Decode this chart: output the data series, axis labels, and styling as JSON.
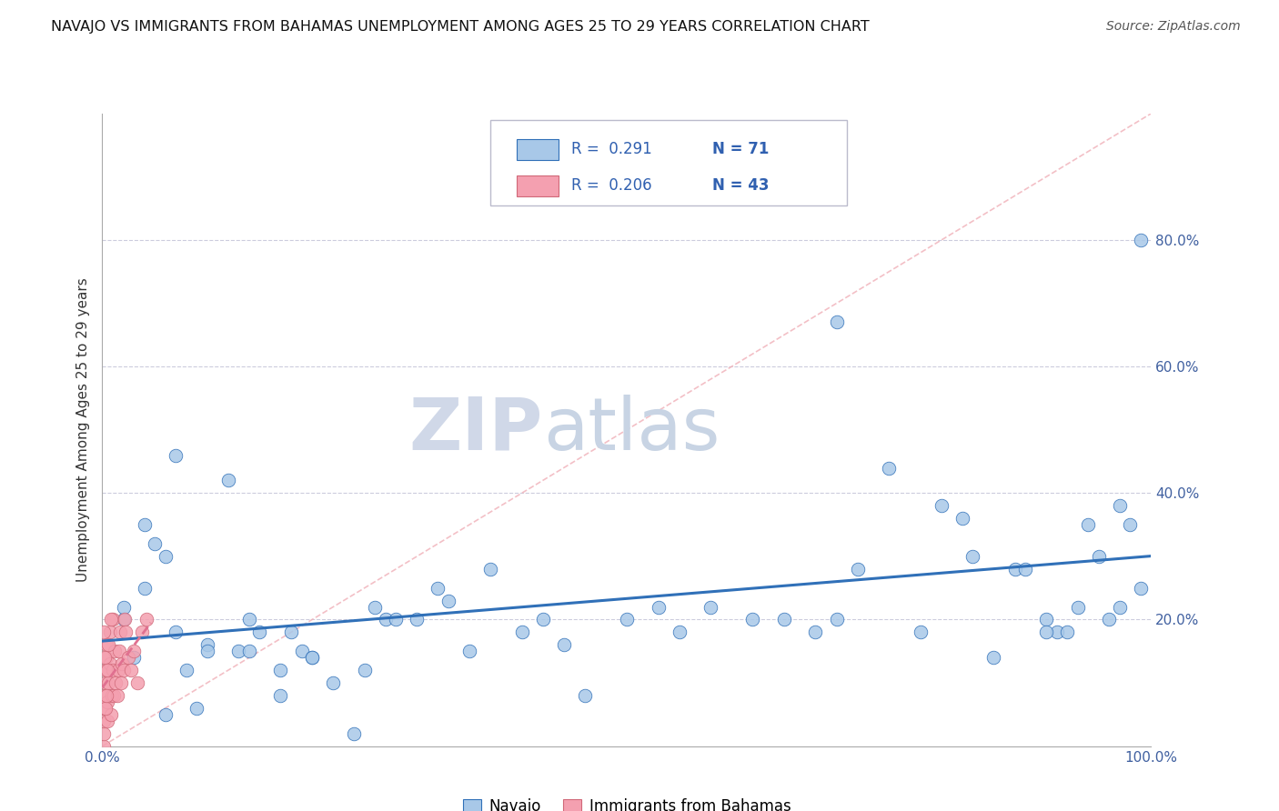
{
  "title": "NAVAJO VS IMMIGRANTS FROM BAHAMAS UNEMPLOYMENT AMONG AGES 25 TO 29 YEARS CORRELATION CHART",
  "source": "Source: ZipAtlas.com",
  "ylabel": "Unemployment Among Ages 25 to 29 years",
  "xlim": [
    0,
    1.0
  ],
  "ylim": [
    0,
    1.0
  ],
  "xticks": [
    0.0,
    0.2,
    0.4,
    0.6,
    0.8,
    1.0
  ],
  "xticklabels": [
    "0.0%",
    "",
    "",
    "",
    "",
    "100.0%"
  ],
  "ytick_positions": [
    0.2,
    0.4,
    0.6,
    0.8
  ],
  "yticklabels": [
    "20.0%",
    "40.0%",
    "60.0%",
    "80.0%"
  ],
  "legend_r1": "R =  0.291",
  "legend_n1": "N = 71",
  "legend_r2": "R =  0.206",
  "legend_n2": "N = 43",
  "color_navajo": "#a8c8e8",
  "color_bahamas": "#f4a0b0",
  "color_line_navajo": "#3070b8",
  "color_line_bahamas": "#e07090",
  "color_diag": "#f0b0b8",
  "watermark_zip": "ZIP",
  "watermark_atlas": "atlas",
  "navajo_x": [
    0.02,
    0.03,
    0.04,
    0.05,
    0.06,
    0.07,
    0.08,
    0.1,
    0.12,
    0.14,
    0.15,
    0.17,
    0.19,
    0.2,
    0.22,
    0.25,
    0.27,
    0.3,
    0.32,
    0.35,
    0.37,
    0.4,
    0.44,
    0.5,
    0.55,
    0.58,
    0.62,
    0.65,
    0.68,
    0.7,
    0.72,
    0.75,
    0.78,
    0.8,
    0.82,
    0.83,
    0.85,
    0.87,
    0.88,
    0.9,
    0.91,
    0.92,
    0.93,
    0.94,
    0.95,
    0.96,
    0.97,
    0.97,
    0.98,
    0.99,
    0.02,
    0.04,
    0.06,
    0.07,
    0.09,
    0.1,
    0.13,
    0.14,
    0.17,
    0.18,
    0.2,
    0.24,
    0.26,
    0.28,
    0.33,
    0.42,
    0.46,
    0.53,
    0.7,
    0.9,
    0.99
  ],
  "navajo_y": [
    0.2,
    0.14,
    0.25,
    0.32,
    0.05,
    0.18,
    0.12,
    0.16,
    0.42,
    0.2,
    0.18,
    0.08,
    0.15,
    0.14,
    0.1,
    0.12,
    0.2,
    0.2,
    0.25,
    0.15,
    0.28,
    0.18,
    0.16,
    0.2,
    0.18,
    0.22,
    0.2,
    0.2,
    0.18,
    0.67,
    0.28,
    0.44,
    0.18,
    0.38,
    0.36,
    0.3,
    0.14,
    0.28,
    0.28,
    0.2,
    0.18,
    0.18,
    0.22,
    0.35,
    0.3,
    0.2,
    0.22,
    0.38,
    0.35,
    0.25,
    0.22,
    0.35,
    0.3,
    0.46,
    0.06,
    0.15,
    0.15,
    0.15,
    0.12,
    0.18,
    0.14,
    0.02,
    0.22,
    0.2,
    0.23,
    0.2,
    0.08,
    0.22,
    0.2,
    0.18,
    0.8
  ],
  "bahamas_x": [
    0.001,
    0.001,
    0.001,
    0.002,
    0.002,
    0.003,
    0.003,
    0.004,
    0.004,
    0.005,
    0.005,
    0.006,
    0.007,
    0.007,
    0.008,
    0.009,
    0.01,
    0.01,
    0.011,
    0.012,
    0.013,
    0.014,
    0.015,
    0.016,
    0.017,
    0.018,
    0.019,
    0.02,
    0.021,
    0.022,
    0.025,
    0.027,
    0.03,
    0.033,
    0.038,
    0.042,
    0.001,
    0.002,
    0.003,
    0.004,
    0.005,
    0.006,
    0.008
  ],
  "bahamas_y": [
    0.0,
    0.02,
    0.04,
    0.06,
    0.08,
    0.1,
    0.12,
    0.14,
    0.16,
    0.04,
    0.07,
    0.1,
    0.13,
    0.18,
    0.05,
    0.08,
    0.12,
    0.2,
    0.08,
    0.15,
    0.1,
    0.08,
    0.12,
    0.15,
    0.18,
    0.1,
    0.13,
    0.12,
    0.2,
    0.18,
    0.14,
    0.12,
    0.15,
    0.1,
    0.18,
    0.2,
    0.18,
    0.14,
    0.06,
    0.08,
    0.12,
    0.16,
    0.2
  ]
}
